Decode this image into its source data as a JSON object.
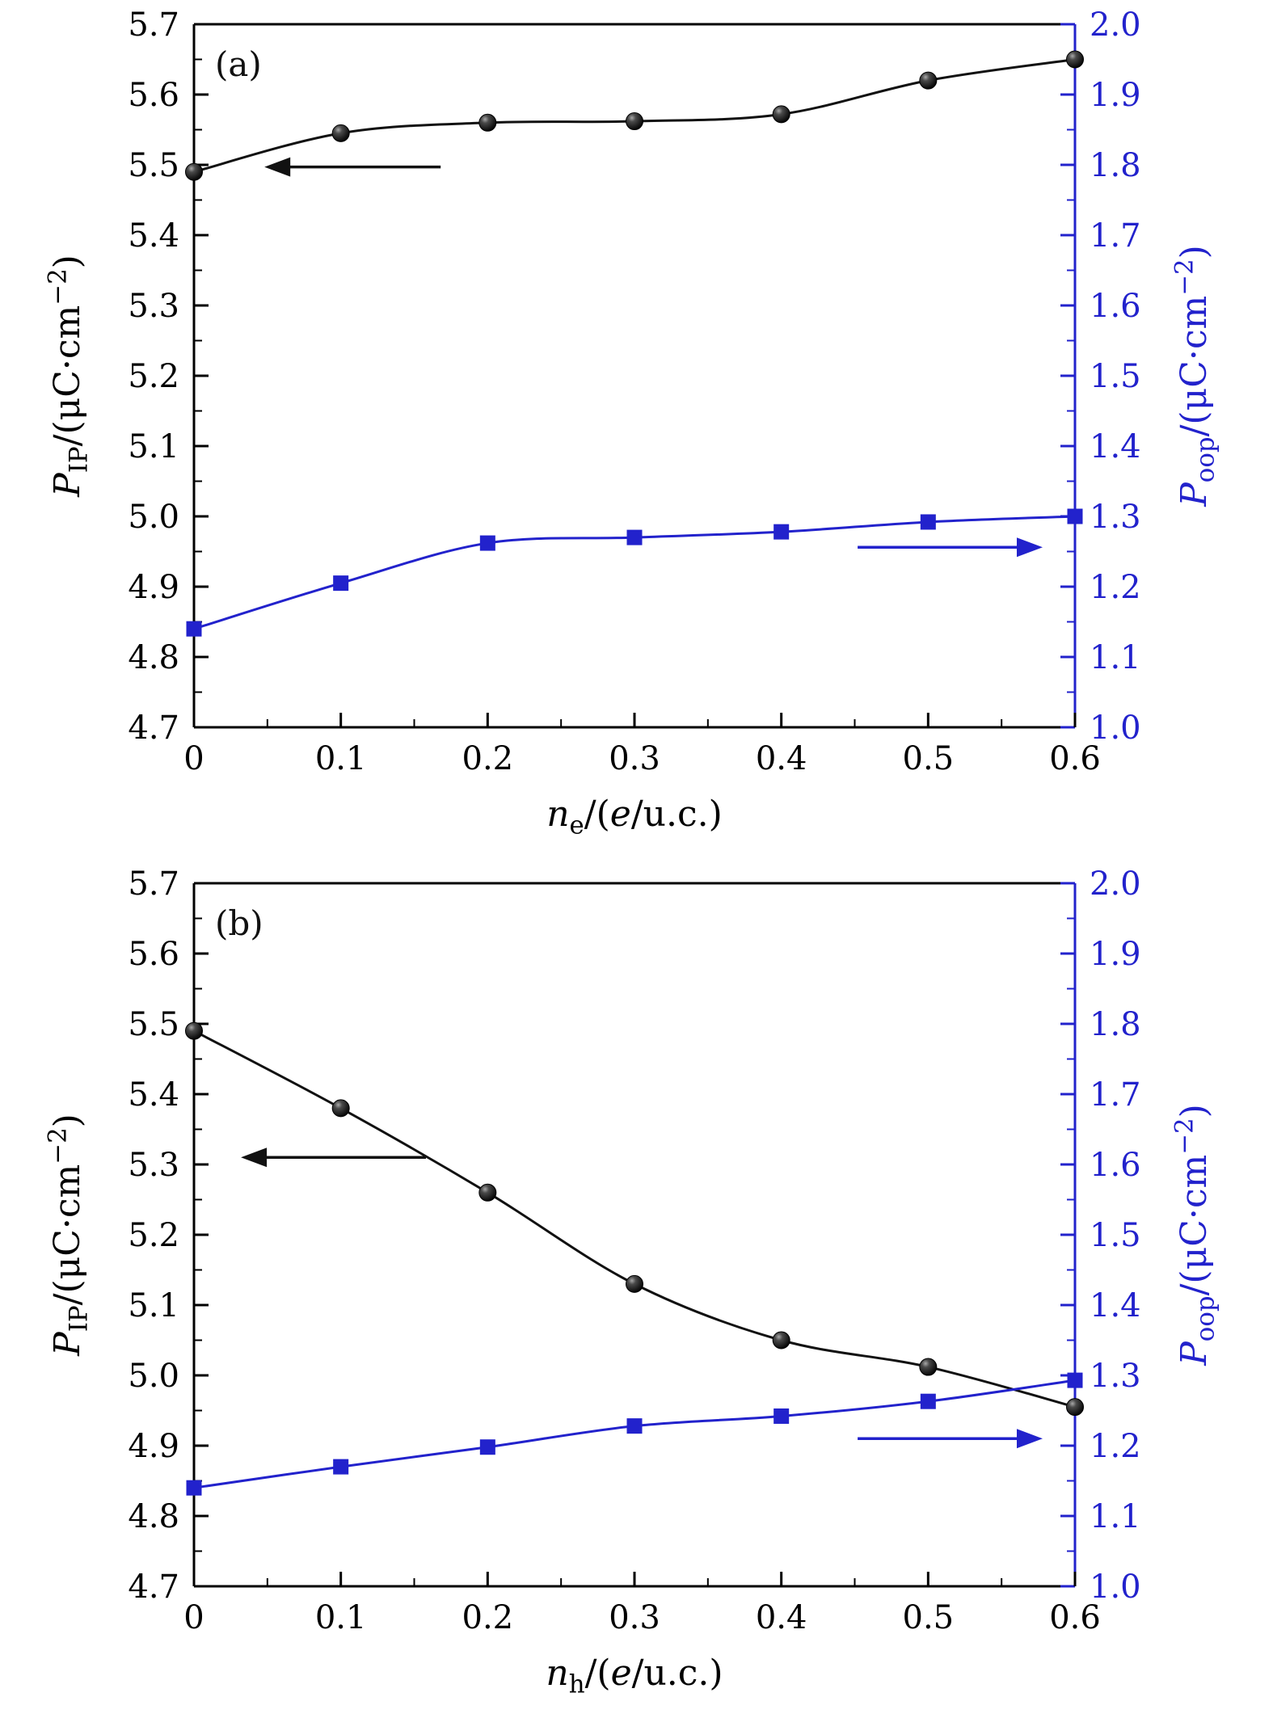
{
  "figure": {
    "background": "#ffffff",
    "panels": [
      "(a)",
      "(b)"
    ]
  },
  "style": {
    "black": "#111111",
    "blue": "#2222cc",
    "tick_font_size": 40,
    "title_font_size": 44,
    "panel_label_font_size": 42
  },
  "chart_data": [
    {
      "type": "line",
      "panel_label": "(a)",
      "grid": false,
      "legend": "none",
      "x": [
        0,
        0.1,
        0.2,
        0.3,
        0.4,
        0.5,
        0.6
      ],
      "x_axis": {
        "min": 0,
        "max": 0.6,
        "major_step": 0.1,
        "tick_labels": [
          "0",
          "0.1",
          "0.2",
          "0.3",
          "0.4",
          "0.5",
          "0.6"
        ],
        "label_text": "ne/(e/u.c.)",
        "label_parts": [
          {
            "t": "n",
            "s": "i"
          },
          {
            "t": "e",
            "s": "sub"
          },
          {
            "t": "/(",
            "s": "n"
          },
          {
            "t": "e",
            "s": "i"
          },
          {
            "t": "/u.c.)",
            "s": "n"
          }
        ],
        "color": "#000000"
      },
      "left_axis": {
        "min": 4.7,
        "max": 5.7,
        "major_step": 0.1,
        "tick_labels": [
          "4.7",
          "4.8",
          "4.9",
          "5.0",
          "5.1",
          "5.2",
          "5.3",
          "5.4",
          "5.5",
          "5.6",
          "5.7"
        ],
        "label_text": "PIP/(μC·cm⁻²)",
        "label_parts": [
          {
            "t": "P",
            "s": "i"
          },
          {
            "t": "IP",
            "s": "sub"
          },
          {
            "t": "/(μC·cm",
            "s": "n"
          },
          {
            "t": "−2",
            "s": "sup"
          },
          {
            "t": ")",
            "s": "n"
          }
        ],
        "color": "#000000"
      },
      "right_axis": {
        "min": 1.0,
        "max": 2.0,
        "major_step": 0.1,
        "tick_labels": [
          "1.0",
          "1.1",
          "1.2",
          "1.3",
          "1.4",
          "1.5",
          "1.6",
          "1.7",
          "1.8",
          "1.9",
          "2.0"
        ],
        "label_text": "Poop/(μC·cm⁻²)",
        "label_parts": [
          {
            "t": "P",
            "s": "i"
          },
          {
            "t": "oop",
            "s": "sub"
          },
          {
            "t": "/(μC·cm",
            "s": "n"
          },
          {
            "t": "−2",
            "s": "sup"
          },
          {
            "t": ")",
            "s": "n"
          }
        ],
        "color": "#2222cc"
      },
      "series": [
        {
          "name": "P-IP",
          "axis": "left",
          "marker": "sphere",
          "color": "#111111",
          "values": [
            5.49,
            5.545,
            5.56,
            5.562,
            5.572,
            5.62,
            5.65
          ]
        },
        {
          "name": "P-oop",
          "axis": "right",
          "marker": "square",
          "color": "#2222cc",
          "values": [
            1.14,
            1.205,
            1.262,
            1.27,
            1.278,
            1.292,
            1.3
          ]
        }
      ],
      "arrows": [
        {
          "axis": "left",
          "color": "#111111",
          "y": 5.497,
          "x_tail": 0.168,
          "x_head": 0.048
        },
        {
          "axis": "right",
          "color": "#2222cc",
          "y": 1.256,
          "x_tail": 0.452,
          "x_head": 0.578
        }
      ]
    },
    {
      "type": "line",
      "panel_label": "(b)",
      "grid": false,
      "legend": "none",
      "x": [
        0,
        0.1,
        0.2,
        0.3,
        0.4,
        0.5,
        0.6
      ],
      "x_axis": {
        "min": 0,
        "max": 0.6,
        "major_step": 0.1,
        "tick_labels": [
          "0",
          "0.1",
          "0.2",
          "0.3",
          "0.4",
          "0.5",
          "0.6"
        ],
        "label_text": "nh/(e/u.c.)",
        "label_parts": [
          {
            "t": "n",
            "s": "i"
          },
          {
            "t": "h",
            "s": "sub"
          },
          {
            "t": "/(",
            "s": "n"
          },
          {
            "t": "e",
            "s": "i"
          },
          {
            "t": "/u.c.)",
            "s": "n"
          }
        ],
        "color": "#000000"
      },
      "left_axis": {
        "min": 4.7,
        "max": 5.7,
        "major_step": 0.1,
        "tick_labels": [
          "4.7",
          "4.8",
          "4.9",
          "5.0",
          "5.1",
          "5.2",
          "5.3",
          "5.4",
          "5.5",
          "5.6",
          "5.7"
        ],
        "label_text": "PIP/(μC·cm⁻²)",
        "label_parts": [
          {
            "t": "P",
            "s": "i"
          },
          {
            "t": "IP",
            "s": "sub"
          },
          {
            "t": "/(μC·cm",
            "s": "n"
          },
          {
            "t": "−2",
            "s": "sup"
          },
          {
            "t": ")",
            "s": "n"
          }
        ],
        "color": "#000000"
      },
      "right_axis": {
        "min": 1.0,
        "max": 2.0,
        "major_step": 0.1,
        "tick_labels": [
          "1.0",
          "1.1",
          "1.2",
          "1.3",
          "1.4",
          "1.5",
          "1.6",
          "1.7",
          "1.8",
          "1.9",
          "2.0"
        ],
        "label_text": "Poop/(μC·cm⁻²)",
        "label_parts": [
          {
            "t": "P",
            "s": "i"
          },
          {
            "t": "oop",
            "s": "sub"
          },
          {
            "t": "/(μC·cm",
            "s": "n"
          },
          {
            "t": "−2",
            "s": "sup"
          },
          {
            "t": ")",
            "s": "n"
          }
        ],
        "color": "#2222cc"
      },
      "series": [
        {
          "name": "P-IP",
          "axis": "left",
          "marker": "sphere",
          "color": "#111111",
          "values": [
            5.49,
            5.38,
            5.26,
            5.13,
            5.05,
            5.012,
            4.955
          ]
        },
        {
          "name": "P-oop",
          "axis": "right",
          "marker": "square",
          "color": "#2222cc",
          "values": [
            1.14,
            1.17,
            1.198,
            1.228,
            1.242,
            1.263,
            1.293
          ]
        }
      ],
      "arrows": [
        {
          "axis": "left",
          "color": "#111111",
          "y": 5.31,
          "x_tail": 0.158,
          "x_head": 0.032
        },
        {
          "axis": "right",
          "color": "#2222cc",
          "y": 1.21,
          "x_tail": 0.452,
          "x_head": 0.578
        }
      ]
    }
  ]
}
